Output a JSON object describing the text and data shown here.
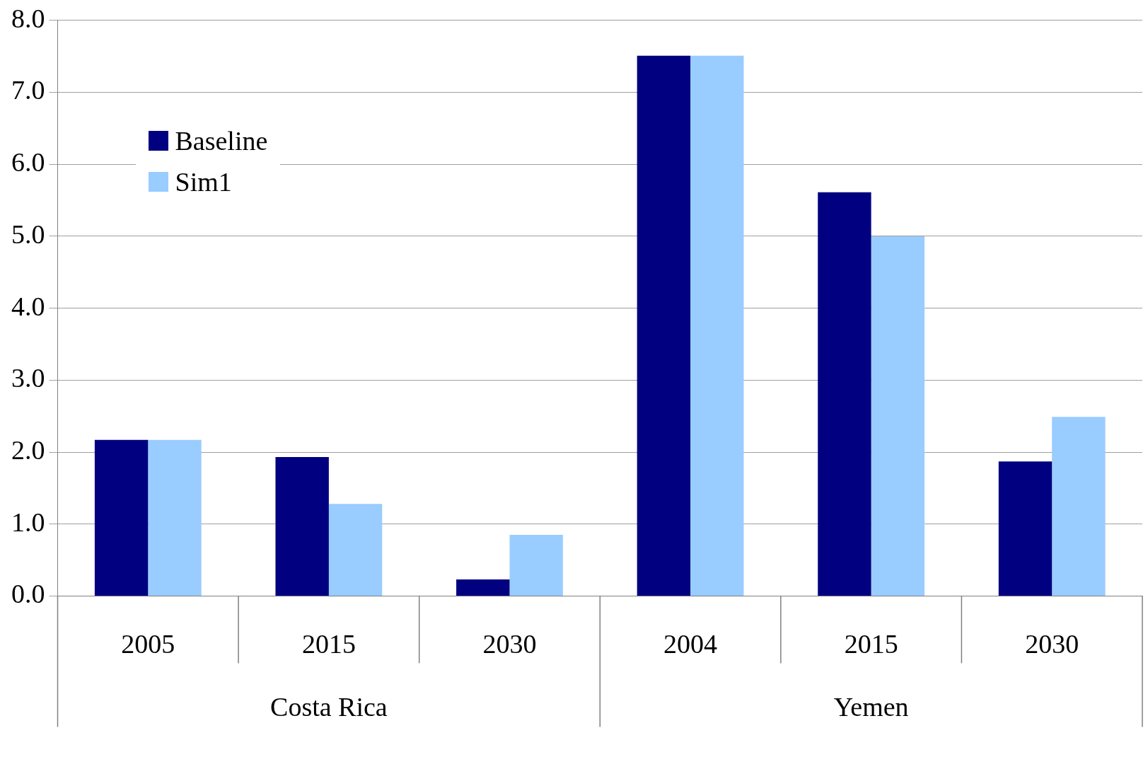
{
  "chart_data": {
    "type": "bar",
    "categories": [
      "2005",
      "2015",
      "2030",
      "2004",
      "2015",
      "2030"
    ],
    "series": [
      {
        "name": "Baseline",
        "color": "#000080",
        "values": [
          2.17,
          1.93,
          0.23,
          7.51,
          5.61,
          1.87
        ]
      },
      {
        "name": "Sim1",
        "color": "#99ccff",
        "values": [
          2.17,
          1.28,
          0.85,
          7.51,
          5.0,
          2.49
        ]
      }
    ],
    "annotations": [
      "Costa Rica",
      "Yemen"
    ],
    "ylim": [
      0,
      8
    ],
    "yticks": [
      {
        "value": 0,
        "label": "0.0"
      },
      {
        "value": 1,
        "label": "1.0"
      },
      {
        "value": 2,
        "label": "2.0"
      },
      {
        "value": 3,
        "label": "3.0"
      },
      {
        "value": 4,
        "label": "4.0"
      },
      {
        "value": 5,
        "label": "5.0"
      },
      {
        "value": 6,
        "label": "6.0"
      },
      {
        "value": 7,
        "label": "7.0"
      },
      {
        "value": 8,
        "label": "8.0"
      }
    ],
    "grid": "y",
    "legend": "top left"
  }
}
